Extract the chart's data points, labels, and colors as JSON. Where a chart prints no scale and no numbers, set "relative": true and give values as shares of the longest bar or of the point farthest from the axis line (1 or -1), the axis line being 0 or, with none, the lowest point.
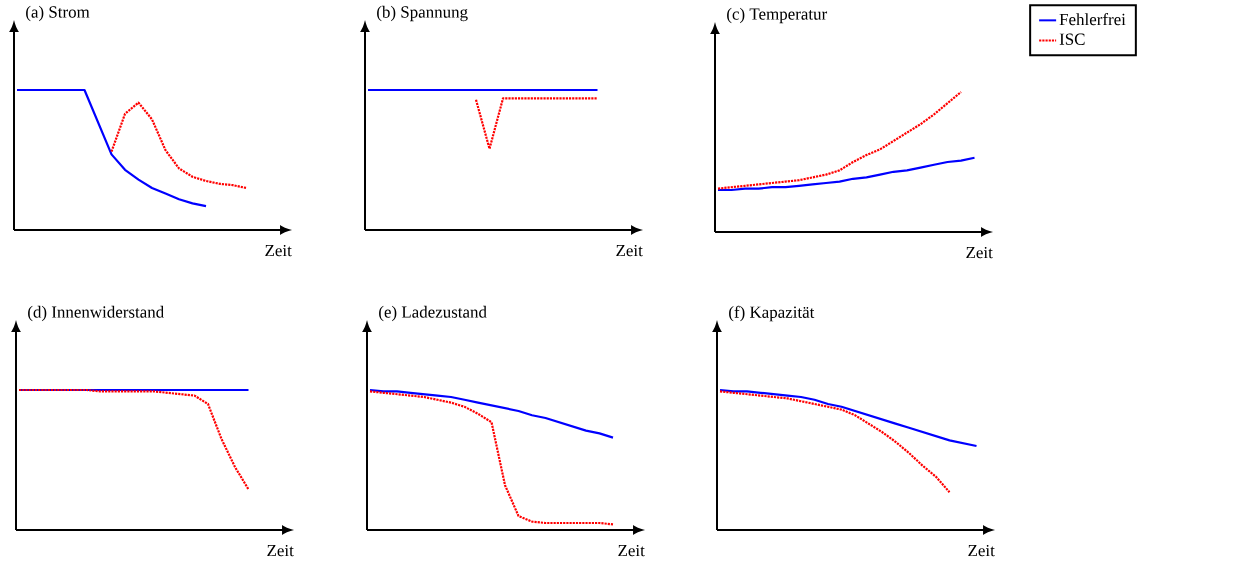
{
  "chart_data": [
    {
      "type": "line",
      "title": "(a) Strom",
      "xlabel": "Zeit",
      "relative": true,
      "categories": [
        null,
        null,
        null,
        null,
        null,
        null,
        null,
        null,
        null,
        null,
        null,
        null,
        null,
        null,
        null,
        null,
        null,
        null,
        null,
        null,
        null
      ],
      "series": [
        {
          "color": "#0000ff",
          "line_style": "solid",
          "values": [
            1,
            1,
            1,
            1,
            1,
            1,
            0.77,
            0.54,
            0.43,
            0.36,
            0.3,
            0.26,
            0.22,
            0.19,
            0.17,
            null,
            null,
            null,
            null,
            null,
            null
          ]
        },
        {
          "color": "#ff0000",
          "line_style": "dotted",
          "values": [
            null,
            null,
            null,
            null,
            null,
            null,
            null,
            0.56,
            0.83,
            0.91,
            0.79,
            0.57,
            0.44,
            0.38,
            0.35,
            0.33,
            0.32,
            0.3,
            null,
            null,
            null
          ]
        }
      ]
    },
    {
      "type": "line",
      "title": "(b) Spannung",
      "xlabel": "Zeit",
      "relative": true,
      "categories": [
        null,
        null,
        null,
        null,
        null,
        null,
        null,
        null,
        null,
        null,
        null,
        null,
        null,
        null,
        null,
        null,
        null,
        null,
        null,
        null,
        null
      ],
      "series": [
        {
          "color": "#0000ff",
          "line_style": "solid",
          "values": [
            1,
            1,
            1,
            1,
            1,
            1,
            1,
            1,
            1,
            1,
            1,
            1,
            1,
            1,
            1,
            1,
            1,
            1,
            null,
            null,
            null
          ]
        },
        {
          "color": "#ff0000",
          "line_style": "dotted",
          "values": [
            null,
            null,
            null,
            null,
            null,
            null,
            null,
            null,
            0.93,
            0.58,
            0.94,
            0.94,
            0.94,
            0.94,
            0.94,
            0.94,
            0.94,
            0.94,
            null,
            null,
            null
          ]
        }
      ]
    },
    {
      "type": "line",
      "title": "(c) Temperatur",
      "xlabel": "Zeit",
      "relative": true,
      "legend": "right",
      "categories": [
        null,
        null,
        null,
        null,
        null,
        null,
        null,
        null,
        null,
        null,
        null,
        null,
        null,
        null,
        null,
        null,
        null,
        null,
        null,
        null,
        null
      ],
      "series": [
        {
          "name": "Fehlerfrei",
          "color": "#0000ff",
          "line_style": "solid",
          "values": [
            0.3,
            0.3,
            0.31,
            0.31,
            0.32,
            0.32,
            0.33,
            0.34,
            0.35,
            0.36,
            0.38,
            0.39,
            0.41,
            0.43,
            0.44,
            0.46,
            0.48,
            0.5,
            0.51,
            0.53,
            null
          ]
        },
        {
          "name": "ISC",
          "color": "#ff0000",
          "line_style": "dotted",
          "values": [
            0.31,
            0.32,
            0.33,
            0.34,
            0.35,
            0.36,
            0.37,
            0.39,
            0.41,
            0.44,
            0.5,
            0.55,
            0.59,
            0.65,
            0.71,
            0.77,
            0.84,
            0.92,
            1,
            null,
            null
          ]
        }
      ]
    },
    {
      "type": "line",
      "title": "(d) Innenwiderstand",
      "xlabel": "Zeit",
      "relative": true,
      "categories": [
        null,
        null,
        null,
        null,
        null,
        null,
        null,
        null,
        null,
        null,
        null,
        null,
        null,
        null,
        null,
        null,
        null,
        null,
        null,
        null,
        null
      ],
      "series": [
        {
          "color": "#0000ff",
          "line_style": "solid",
          "values": [
            1,
            1,
            1,
            1,
            1,
            1,
            1,
            1,
            1,
            1,
            1,
            1,
            1,
            1,
            1,
            1,
            1,
            1,
            null,
            null,
            null
          ]
        },
        {
          "color": "#ff0000",
          "line_style": "dotted",
          "values": [
            1,
            1,
            1,
            1,
            1,
            1,
            0.99,
            0.99,
            0.99,
            0.99,
            0.99,
            0.98,
            0.97,
            0.96,
            0.9,
            0.65,
            0.45,
            0.29,
            null,
            null,
            null
          ]
        }
      ]
    },
    {
      "type": "line",
      "title": "(e) Ladezustand",
      "xlabel": "Zeit",
      "relative": true,
      "categories": [
        null,
        null,
        null,
        null,
        null,
        null,
        null,
        null,
        null,
        null,
        null,
        null,
        null,
        null,
        null,
        null,
        null,
        null,
        null,
        null,
        null
      ],
      "series": [
        {
          "color": "#0000ff",
          "line_style": "solid",
          "values": [
            1,
            0.99,
            0.99,
            0.98,
            0.97,
            0.96,
            0.95,
            0.93,
            0.91,
            0.89,
            0.87,
            0.85,
            0.82,
            0.8,
            0.77,
            0.74,
            0.71,
            0.69,
            0.66,
            null,
            null
          ]
        },
        {
          "color": "#ff0000",
          "line_style": "dotted",
          "values": [
            0.99,
            0.98,
            0.97,
            0.96,
            0.95,
            0.93,
            0.91,
            0.88,
            0.83,
            0.77,
            0.32,
            0.1,
            0.06,
            0.05,
            0.05,
            0.05,
            0.05,
            0.05,
            0.04,
            null,
            null
          ]
        }
      ]
    },
    {
      "type": "line",
      "title": "(f) Kapazität",
      "xlabel": "Zeit",
      "relative": true,
      "categories": [
        null,
        null,
        null,
        null,
        null,
        null,
        null,
        null,
        null,
        null,
        null,
        null,
        null,
        null,
        null,
        null,
        null,
        null,
        null,
        null,
        null
      ],
      "series": [
        {
          "color": "#0000ff",
          "line_style": "solid",
          "values": [
            1,
            0.99,
            0.99,
            0.98,
            0.97,
            0.96,
            0.95,
            0.93,
            0.9,
            0.88,
            0.85,
            0.82,
            0.79,
            0.76,
            0.73,
            0.7,
            0.67,
            0.64,
            0.62,
            0.6,
            null
          ]
        },
        {
          "color": "#ff0000",
          "line_style": "dotted",
          "values": [
            0.99,
            0.98,
            0.97,
            0.96,
            0.95,
            0.94,
            0.92,
            0.9,
            0.88,
            0.86,
            0.82,
            0.76,
            0.7,
            0.63,
            0.55,
            0.46,
            0.38,
            0.27,
            null,
            null,
            null
          ]
        }
      ]
    }
  ]
}
